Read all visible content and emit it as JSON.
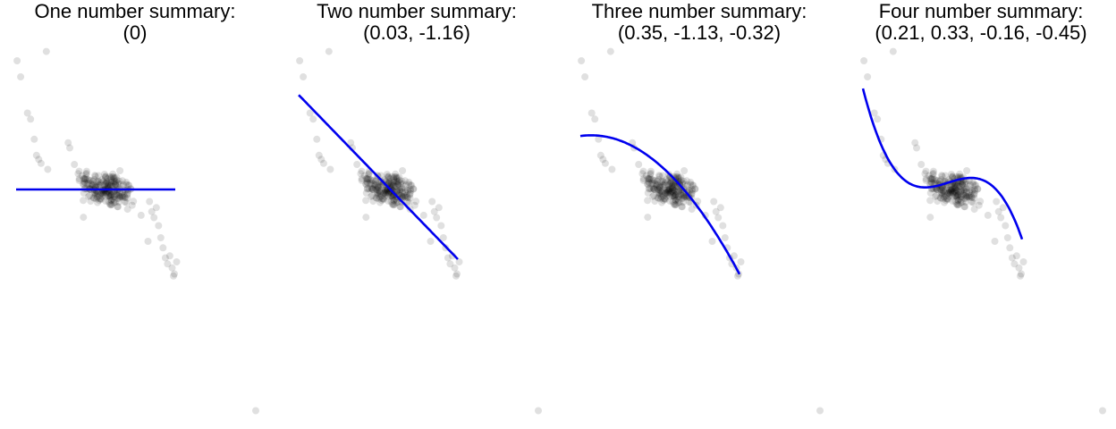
{
  "chart_data": [
    {
      "type": "scatter",
      "title": "One number summary:",
      "subtitle": "(0)",
      "coefficients": [
        0
      ],
      "xlabel": "",
      "ylabel": "",
      "grid": false,
      "axes_visible": false
    },
    {
      "type": "scatter",
      "title": "Two number summary:",
      "subtitle": "(0.03, -1.16)",
      "coefficients": [
        0.03,
        -1.16
      ],
      "xlabel": "",
      "ylabel": "",
      "grid": false,
      "axes_visible": false
    },
    {
      "type": "scatter",
      "title": "Three number summary:",
      "subtitle": "(0.35, -1.13, -0.32)",
      "coefficients": [
        0.35,
        -1.13,
        -0.32
      ],
      "xlabel": "",
      "ylabel": "",
      "grid": false,
      "axes_visible": false
    },
    {
      "type": "scatter",
      "title": "Four number summary:",
      "subtitle": "(0.21, 0.33, -0.16, -0.45)",
      "coefficients": [
        0.21,
        0.33,
        -0.16,
        -0.45
      ],
      "xlabel": "",
      "ylabel": "",
      "grid": false,
      "axes_visible": false
    }
  ],
  "colors": {
    "points": "#000000",
    "fit_line": "#0000ee",
    "title": "#000000"
  }
}
